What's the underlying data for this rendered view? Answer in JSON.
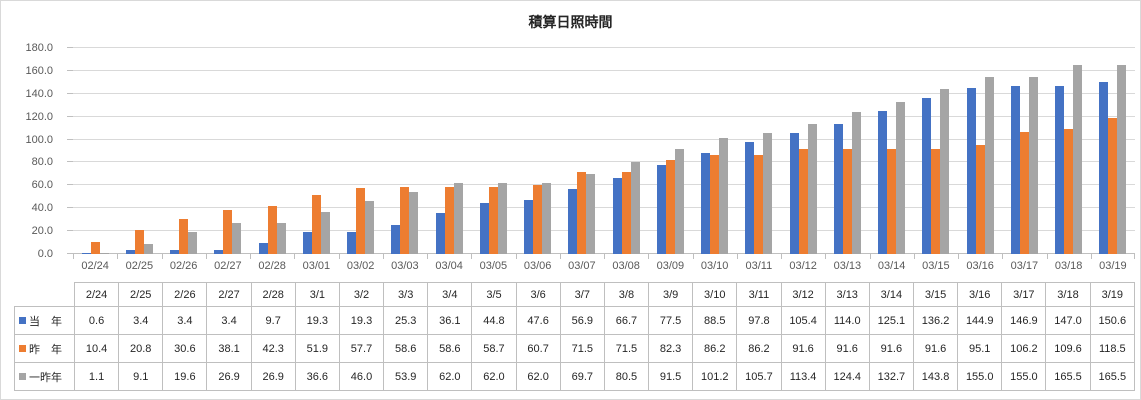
{
  "title": "積算日照時間",
  "colors": {
    "series_blue": "#4472C4",
    "series_orange": "#ED7D31",
    "series_gray": "#A5A5A5",
    "gridline": "#D9D9D9",
    "axis_line": "#BFBFBF",
    "table_border": "#BFBFBF",
    "axis_text": "#595959",
    "title_text": "#262626"
  },
  "chart_data": {
    "type": "bar",
    "title": "積算日照時間",
    "xlabel": "",
    "ylabel": "",
    "ylim": [
      0,
      180
    ],
    "y_tick_step": 20,
    "y_tick_labels": [
      "0.0",
      "20.0",
      "40.0",
      "60.0",
      "80.0",
      "100.0",
      "120.0",
      "140.0",
      "160.0",
      "180.0"
    ],
    "grid": "on",
    "legend_position": "data-table-left",
    "categories": [
      "02/24",
      "02/25",
      "02/26",
      "02/27",
      "02/28",
      "03/01",
      "03/02",
      "03/03",
      "03/04",
      "03/05",
      "03/06",
      "03/07",
      "03/08",
      "03/09",
      "03/10",
      "03/11",
      "03/12",
      "03/13",
      "03/14",
      "03/15",
      "03/16",
      "03/17",
      "03/18",
      "03/19"
    ],
    "table_headers": [
      "2/24",
      "2/25",
      "2/26",
      "2/27",
      "2/28",
      "3/1",
      "3/2",
      "3/3",
      "3/4",
      "3/5",
      "3/6",
      "3/7",
      "3/8",
      "3/9",
      "3/10",
      "3/11",
      "3/12",
      "3/13",
      "3/14",
      "3/15",
      "3/16",
      "3/17",
      "3/18",
      "3/19"
    ],
    "series": [
      {
        "name": "当　年",
        "color": "#4472C4",
        "values": [
          0.6,
          3.4,
          3.4,
          3.4,
          9.7,
          19.3,
          19.3,
          25.3,
          36.1,
          44.8,
          47.6,
          56.9,
          66.7,
          77.5,
          88.5,
          97.8,
          105.4,
          114.0,
          125.1,
          136.2,
          144.9,
          146.9,
          147.0,
          150.6
        ]
      },
      {
        "name": "昨　年",
        "color": "#ED7D31",
        "values": [
          10.4,
          20.8,
          30.6,
          38.1,
          42.3,
          51.9,
          57.7,
          58.6,
          58.6,
          58.7,
          60.7,
          71.5,
          71.5,
          82.3,
          86.2,
          86.2,
          91.6,
          91.6,
          91.6,
          91.6,
          95.1,
          106.2,
          109.6,
          118.5
        ]
      },
      {
        "name": "一昨年",
        "color": "#A5A5A5",
        "values": [
          1.1,
          9.1,
          19.6,
          26.9,
          26.9,
          36.6,
          46.0,
          53.9,
          62.0,
          62.0,
          62.0,
          69.7,
          80.5,
          91.5,
          101.2,
          105.7,
          113.4,
          124.4,
          132.7,
          143.8,
          155.0,
          155.0,
          165.5,
          165.5
        ]
      }
    ]
  }
}
